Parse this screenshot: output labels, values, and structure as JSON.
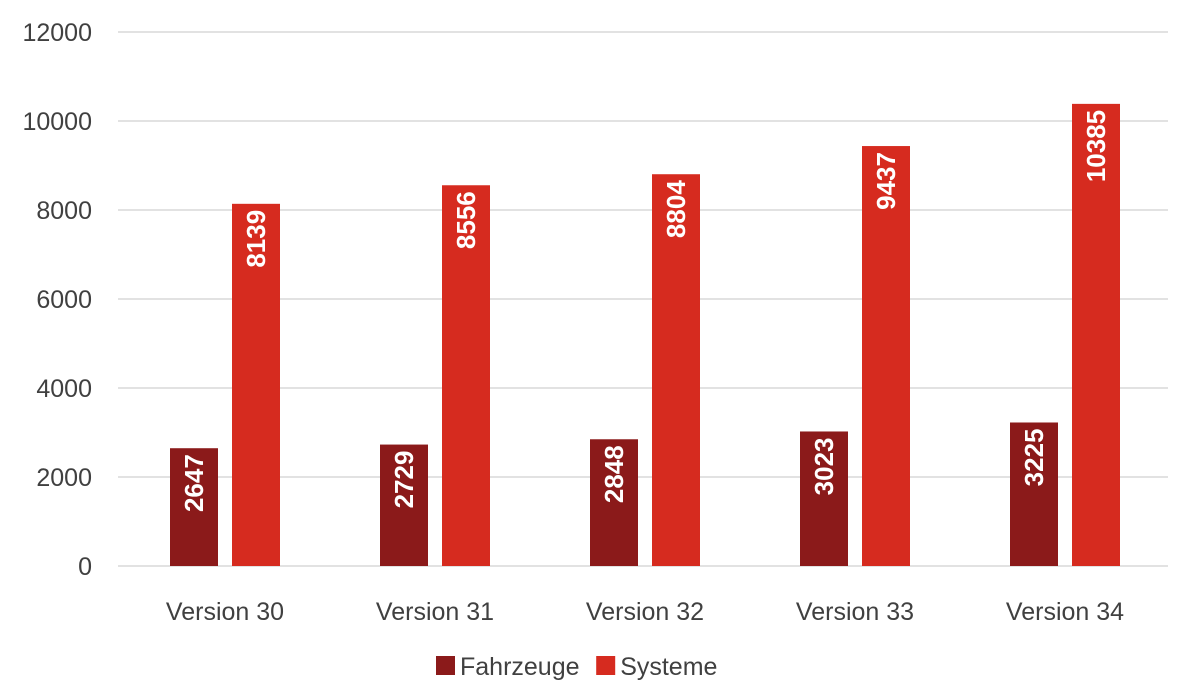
{
  "chart_data": {
    "type": "bar",
    "title": "",
    "xlabel": "",
    "ylabel": "",
    "categories": [
      "Version 30",
      "Version 31",
      "Version 32",
      "Version 33",
      "Version 34"
    ],
    "series": [
      {
        "name": "Fahrzeuge",
        "color": "#8b1a1a",
        "values": [
          2647,
          2729,
          2848,
          3023,
          3225
        ]
      },
      {
        "name": "Systeme",
        "color": "#d62b1f",
        "values": [
          8139,
          8556,
          8804,
          9437,
          10385
        ]
      }
    ],
    "ylim": [
      0,
      12000
    ],
    "yticks": [
      0,
      2000,
      4000,
      6000,
      8000,
      10000,
      12000
    ],
    "grid": true,
    "legend": "bottom-center",
    "data_labels": "inside-end-rotated"
  }
}
